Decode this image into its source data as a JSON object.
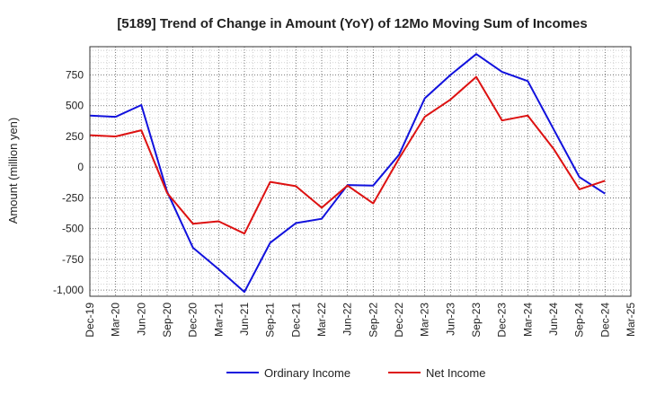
{
  "chart_data": {
    "type": "line",
    "title": "[5189]  Trend of Change in Amount (YoY) of 12Mo Moving Sum of Incomes",
    "xlabel": "",
    "ylabel": "Amount (million yen)",
    "ylim": [
      -1050,
      980
    ],
    "yticks": [
      -1000,
      -750,
      -500,
      -250,
      0,
      250,
      500,
      750
    ],
    "ytick_labels": [
      "-1,000",
      "-750",
      "-500",
      "-250",
      "0",
      "250",
      "500",
      "750"
    ],
    "grid": true,
    "legend_position": "bottom-center",
    "categories": [
      "Dec-19",
      "Mar-20",
      "Jun-20",
      "Sep-20",
      "Dec-20",
      "Mar-21",
      "Jun-21",
      "Sep-21",
      "Dec-21",
      "Mar-22",
      "Jun-22",
      "Sep-22",
      "Dec-22",
      "Mar-23",
      "Jun-23",
      "Sep-23",
      "Dec-23",
      "Mar-24",
      "Jun-24",
      "Sep-24",
      "Dec-24",
      "Mar-25"
    ],
    "series": [
      {
        "name": "Ordinary Income",
        "color": "#1111dd",
        "values": [
          420,
          410,
          505,
          -200,
          -655,
          -830,
          -1015,
          -615,
          -455,
          -420,
          -145,
          -150,
          100,
          560,
          750,
          920,
          775,
          700,
          310,
          -80,
          -215,
          null
        ]
      },
      {
        "name": "Net Income",
        "color": "#dd1111",
        "values": [
          260,
          250,
          300,
          -210,
          -460,
          -440,
          -540,
          -120,
          -155,
          -330,
          -150,
          -295,
          70,
          410,
          550,
          735,
          380,
          420,
          150,
          -180,
          -110,
          null
        ]
      }
    ]
  }
}
